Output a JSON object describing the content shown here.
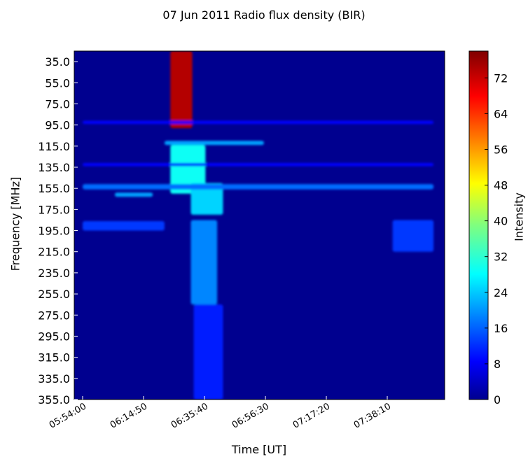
{
  "chart_data": {
    "type": "heatmap",
    "title": "07 Jun 2011 Radio flux density (BIR)",
    "xlabel": "Time [UT]",
    "ylabel": "Frequency [MHz]",
    "colorbar_label": "Intensity",
    "colormap": "jet",
    "background_color": "#00008f",
    "x_ticks": [
      "05:54:00",
      "06:14:50",
      "06:35:40",
      "06:56:30",
      "07:17:20",
      "07:38:10"
    ],
    "y_ticks": [
      "35.0",
      "55.0",
      "75.0",
      "95.0",
      "115.0",
      "135.0",
      "155.0",
      "175.0",
      "195.0",
      "215.0",
      "235.0",
      "255.0",
      "275.0",
      "295.0",
      "315.0",
      "335.0",
      "355.0"
    ],
    "ylim": [
      25,
      355
    ],
    "colorbar_ticks": [
      0,
      8,
      16,
      24,
      32,
      40,
      48,
      56,
      64,
      72
    ],
    "colorbar_range": [
      0,
      78
    ],
    "features": [
      {
        "t_start": "06:24:00",
        "t_end": "06:31:30",
        "f_start": 25,
        "f_end": 98,
        "peak": 74
      },
      {
        "t_start": "06:22:00",
        "t_end": "06:56:00",
        "f_start": 110,
        "f_end": 114,
        "peak": 22
      },
      {
        "t_start": "06:24:00",
        "t_end": "06:36:00",
        "f_start": 114,
        "f_end": 160,
        "peak": 30
      },
      {
        "t_start": "06:31:00",
        "t_end": "06:42:00",
        "f_start": 150,
        "f_end": 180,
        "peak": 26
      },
      {
        "t_start": "06:31:00",
        "t_end": "06:40:00",
        "f_start": 185,
        "f_end": 265,
        "peak": 20
      },
      {
        "t_start": "06:32:00",
        "t_end": "06:42:00",
        "f_start": 265,
        "f_end": 355,
        "peak": 12
      },
      {
        "t_start": "05:54:00",
        "t_end": "07:54:00",
        "f_start": 151,
        "f_end": 156,
        "peak": 18
      },
      {
        "t_start": "05:54:00",
        "t_end": "07:54:00",
        "f_start": 91,
        "f_end": 94,
        "peak": 10
      },
      {
        "t_start": "05:54:00",
        "t_end": "07:54:00",
        "f_start": 131,
        "f_end": 134,
        "peak": 10
      },
      {
        "t_start": "06:05:00",
        "t_end": "06:18:00",
        "f_start": 159,
        "f_end": 163,
        "peak": 22
      },
      {
        "t_start": "05:54:00",
        "t_end": "06:22:00",
        "f_start": 186,
        "f_end": 195,
        "peak": 14
      },
      {
        "t_start": "07:40:00",
        "t_end": "07:54:00",
        "f_start": 185,
        "f_end": 215,
        "peak": 14
      }
    ]
  }
}
